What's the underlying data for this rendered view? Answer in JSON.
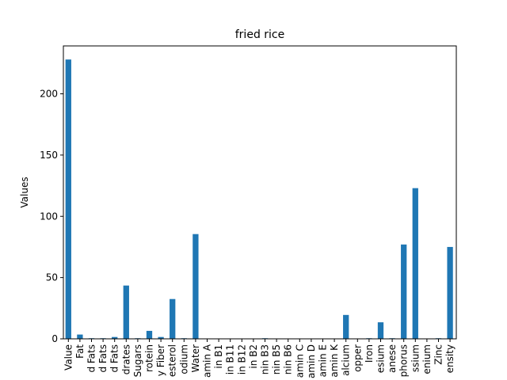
{
  "chart_data": {
    "type": "bar",
    "title": "fried rice",
    "xlabel": "",
    "ylabel": "Values",
    "ylim": [
      0,
      240
    ],
    "yticks": [
      0,
      50,
      100,
      150,
      200
    ],
    "grid": false,
    "legend": "none",
    "bar_color": "#1f77b4",
    "categories": [
      "Value",
      "Fat",
      "d Fats",
      "d Fats",
      "d Fats",
      "drates",
      "Sugars",
      "rotein",
      "y Fiber",
      "esterol",
      "odium",
      "Water",
      "amin A",
      "in B1",
      "in B11",
      "in B12",
      "in B2",
      "nin B3",
      "nin B5",
      "nin B6",
      "amin C",
      "amin D",
      "amin E",
      "amin K",
      "alcium",
      "opper",
      "Iron",
      "esium",
      "anese",
      "phorus",
      "ssium",
      "enium",
      "Zinc",
      "ensity"
    ],
    "values": [
      228,
      3.5,
      0.5,
      0.5,
      1.5,
      43.5,
      0.5,
      6.5,
      1.5,
      32.5,
      0.5,
      85.5,
      0,
      0,
      0,
      0,
      0,
      0.5,
      0,
      0,
      0,
      0,
      0,
      0,
      19.5,
      0,
      0.5,
      13.5,
      0.5,
      77,
      123,
      0,
      0.5,
      75
    ]
  }
}
